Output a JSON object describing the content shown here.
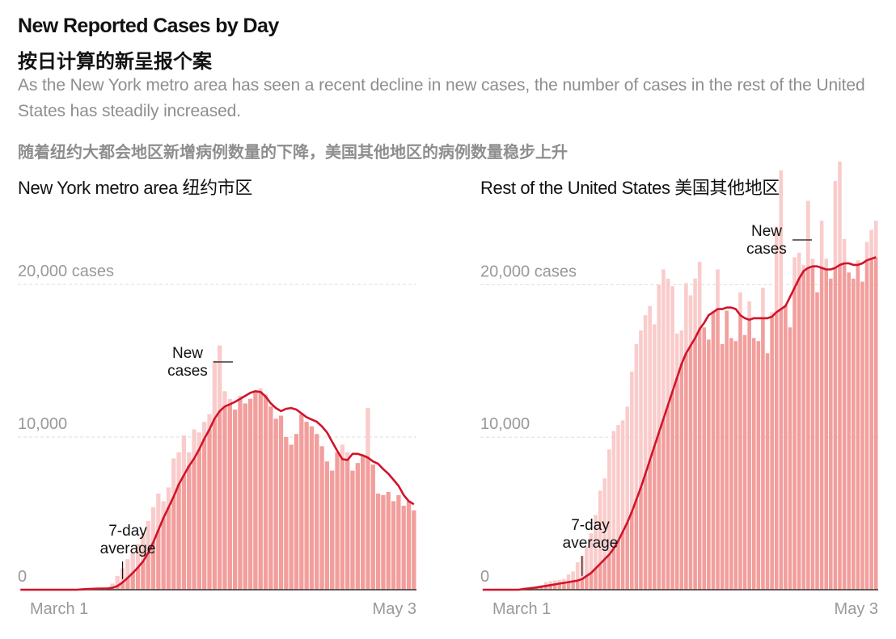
{
  "header": {
    "title": "New Reported Cases by Day",
    "title_zh": "按日计算的新呈报个案",
    "subtitle": "As the New York metro area has seen a recent decline in new cases, the number of cases in the rest of the United States has steadily increased.",
    "subtitle_zh": "随着纽约大都会地区新增病例数量的下降，美国其他地区的病例数量稳步上升"
  },
  "colors": {
    "bar": "#f29e9c",
    "bar_peak": "#f9cccb",
    "avg_line": "#d0142a",
    "grid": "#dddddd",
    "axis": "#333333"
  },
  "chart_data": [
    {
      "type": "bar",
      "title": "New York metro area 纽约市区",
      "x_start_label": "March 1",
      "x_end_label": "May 3",
      "ylim": [
        0,
        21000
      ],
      "y_ticks": [
        {
          "value": 0,
          "label": "0"
        },
        {
          "value": 10000,
          "label": "10,000"
        },
        {
          "value": 20000,
          "label": "20,000 cases"
        }
      ],
      "annotations": {
        "bars": "New cases",
        "line": "7-day average"
      },
      "bars_series": "New cases",
      "line_series": "7-day average",
      "values": [
        0,
        0,
        0,
        0,
        0,
        0,
        0,
        0,
        0,
        0,
        0,
        0,
        20,
        60,
        100,
        140,
        120,
        100,
        400,
        900,
        1400,
        2000,
        2400,
        3000,
        3700,
        4500,
        5400,
        6300,
        5800,
        6700,
        8600,
        9000,
        10100,
        9000,
        10500,
        10300,
        11000,
        11500,
        15000,
        16000,
        13000,
        12500,
        11800,
        12700,
        12200,
        12500,
        13000,
        13200,
        12800,
        12000,
        11200,
        11400,
        10000,
        9500,
        10200,
        11500,
        11000,
        10700,
        10200,
        9400,
        8400,
        7800,
        9000,
        9500,
        9000,
        7800,
        8300,
        8800,
        11900,
        8200,
        6300,
        6200,
        6400,
        5800,
        6200,
        5500,
        5800,
        5200
      ],
      "averages": [
        0,
        0,
        0,
        0,
        0,
        0,
        0,
        0,
        0,
        0,
        0,
        0,
        20,
        40,
        60,
        70,
        80,
        80,
        120,
        250,
        480,
        780,
        1100,
        1450,
        1850,
        2400,
        3100,
        3900,
        4700,
        5400,
        6100,
        6900,
        7500,
        8100,
        8600,
        9200,
        9900,
        10500,
        11200,
        11700,
        12000,
        12150,
        12300,
        12500,
        12700,
        12900,
        13000,
        12950,
        12650,
        12200,
        11900,
        11700,
        11850,
        11900,
        11800,
        11550,
        11300,
        11150,
        11000,
        10700,
        10300,
        9700,
        9100,
        8550,
        8500,
        8900,
        8900,
        8800,
        8650,
        8400,
        8250,
        7900,
        7600,
        7200,
        6800,
        6200,
        5800,
        5600
      ]
    },
    {
      "type": "bar",
      "title": "Rest of the United States 美国其他地区",
      "x_start_label": "March 1",
      "x_end_label": "May 3",
      "ylim": [
        0,
        29000
      ],
      "y_ticks": [
        {
          "value": 0,
          "label": "0"
        },
        {
          "value": 10000,
          "label": "10,000"
        },
        {
          "value": 20000,
          "label": "20,000 cases"
        }
      ],
      "annotations": {
        "bars": "New cases",
        "line": "7-day average"
      },
      "bars_series": "New cases",
      "line_series": "7-day average",
      "values": [
        0,
        0,
        0,
        0,
        0,
        0,
        0,
        0,
        0,
        100,
        150,
        200,
        250,
        300,
        500,
        550,
        600,
        650,
        700,
        1000,
        1200,
        1800,
        2200,
        2800,
        3700,
        4900,
        6500,
        7300,
        9200,
        10400,
        10800,
        11100,
        12000,
        14300,
        16100,
        17000,
        18000,
        18600,
        17400,
        20000,
        21000,
        20400,
        19900,
        16800,
        17000,
        20100,
        19300,
        20400,
        21500,
        17200,
        16400,
        18300,
        21000,
        16100,
        18300,
        16500,
        16300,
        19500,
        16700,
        18900,
        16500,
        16300,
        19800,
        15500,
        18200,
        23800,
        27500,
        18700,
        17200,
        21800,
        22100,
        21300,
        25500,
        21700,
        19500,
        24200,
        21700,
        20400,
        26800,
        29000,
        23000,
        20800,
        20400,
        21600,
        20200,
        22800,
        23600,
        24200
      ],
      "averages": [
        0,
        0,
        0,
        0,
        0,
        0,
        0,
        0,
        0,
        50,
        80,
        110,
        150,
        200,
        250,
        300,
        350,
        400,
        450,
        500,
        550,
        600,
        700,
        900,
        1100,
        1400,
        1700,
        2000,
        2300,
        2700,
        3200,
        3800,
        4400,
        5100,
        5900,
        6700,
        7600,
        8500,
        9400,
        10300,
        11200,
        12100,
        13000,
        13900,
        14800,
        15500,
        16000,
        16500,
        17100,
        17500,
        18000,
        18200,
        18400,
        18400,
        18500,
        18500,
        18400,
        18000,
        17800,
        17700,
        17800,
        17800,
        17800,
        17800,
        17900,
        18200,
        18400,
        18600,
        19200,
        19800,
        20400,
        20900,
        21100,
        21200,
        21200,
        21100,
        21000,
        21000,
        21100,
        21300,
        21400,
        21400,
        21300,
        21300,
        21400,
        21600,
        21700,
        21800
      ]
    }
  ]
}
